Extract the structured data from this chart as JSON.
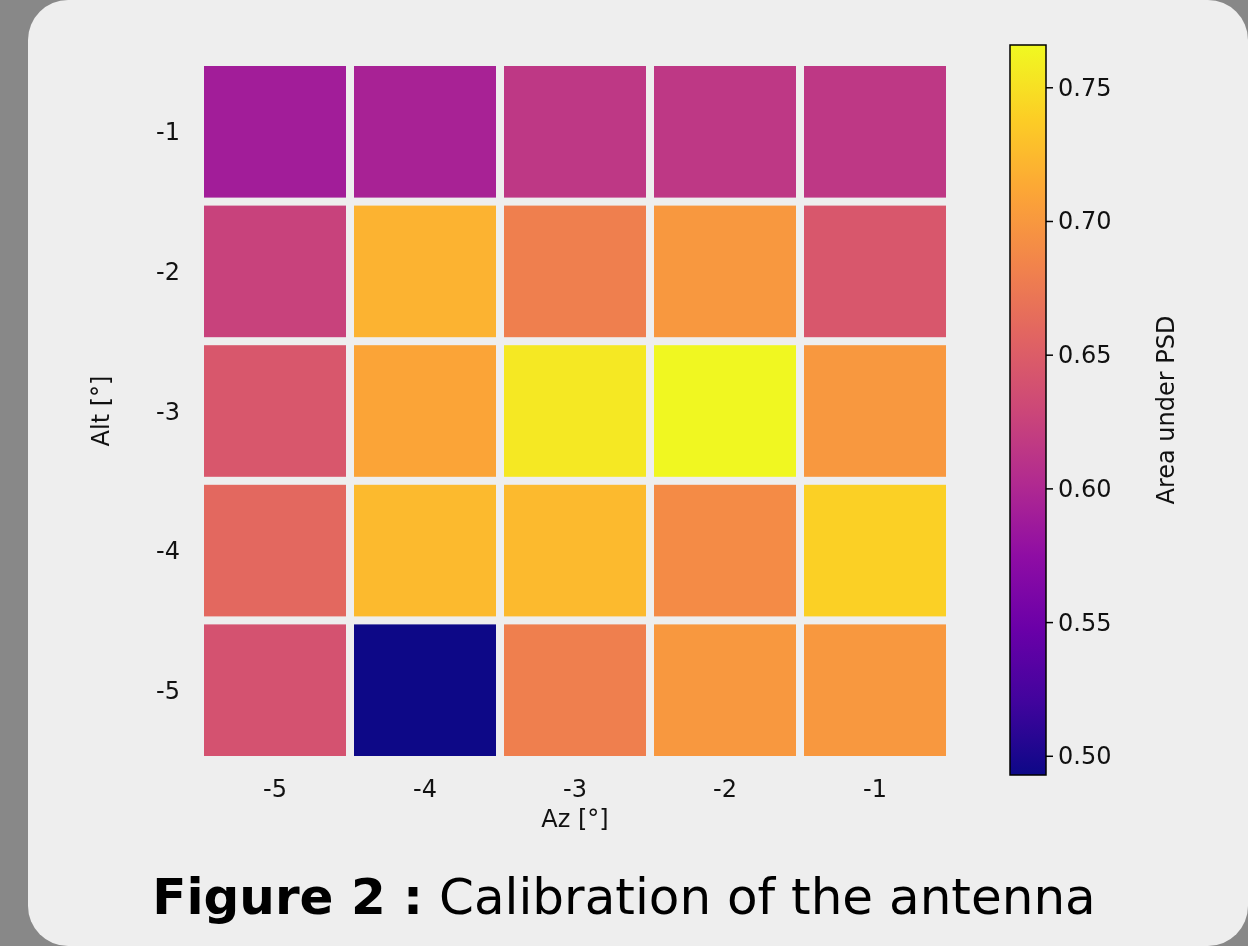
{
  "chart_data": {
    "type": "heatmap",
    "title": "Figure 2 : Calibration of the antenna",
    "xlabel": "Az [°]",
    "ylabel": "Alt [°]",
    "clabel": "Area under PSD",
    "categories": [
      "-5",
      "-4",
      "-3",
      "-2",
      "-1"
    ],
    "y_categories": [
      "-1",
      "-2",
      "-3",
      "-4",
      "-5"
    ],
    "cells": [
      [
        0.59,
        0.595,
        0.615,
        0.615,
        0.615
      ],
      [
        0.625,
        0.72,
        0.68,
        0.7,
        0.645
      ],
      [
        0.645,
        0.71,
        0.755,
        0.765,
        0.7
      ],
      [
        0.66,
        0.725,
        0.725,
        0.69,
        0.74
      ],
      [
        0.64,
        0.493,
        0.68,
        0.7,
        0.7
      ]
    ],
    "clim": [
      0.493,
      0.766
    ],
    "cticks": [
      {
        "value": 0.5,
        "label": "0.50"
      },
      0.55,
      {
        "value": 0.6,
        "label": "0.60"
      },
      0.65,
      {
        "value": 0.7,
        "label": "0.70"
      },
      0.75
    ]
  }
}
